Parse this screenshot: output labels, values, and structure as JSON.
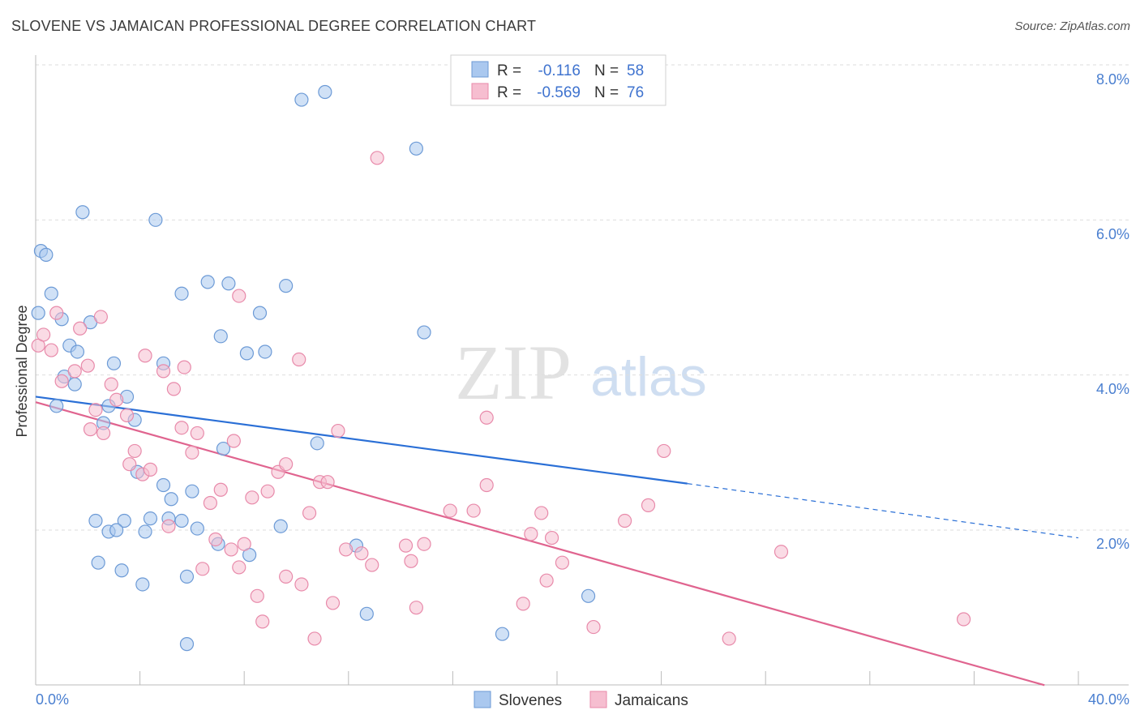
{
  "header": {
    "title": "SLOVENE VS JAMAICAN PROFESSIONAL DEGREE CORRELATION CHART",
    "source": "Source: ZipAtlas.com"
  },
  "watermark": {
    "zip": "ZIP",
    "atlas": "atlas"
  },
  "legend": {
    "rows": [
      {
        "r_label": "R =",
        "r_value": "-0.116",
        "n_label": "N =",
        "n_value": "58"
      },
      {
        "r_label": "R =",
        "r_value": "-0.569",
        "n_label": "N =",
        "n_value": "76"
      }
    ]
  },
  "bottom_legend": {
    "series1": "Slovenes",
    "series2": "Jamaicans"
  },
  "colors": {
    "slovenes_fill": "#aac8ef",
    "slovenes_stroke": "#6c9ad6",
    "slovenes_line": "#2a6fd6",
    "jamaicans_fill": "#f6bed0",
    "jamaicans_stroke": "#e88aaa",
    "jamaicans_line": "#e0648f",
    "grid": "#dedede",
    "tick_text": "#4a7fd0"
  },
  "chart_data": {
    "type": "scatter",
    "title": "SLOVENE VS JAMAICAN PROFESSIONAL DEGREE CORRELATION CHART",
    "xlabel": "",
    "ylabel": "Professional Degree",
    "xlim": [
      0,
      40
    ],
    "ylim": [
      0,
      8.3
    ],
    "x_tick_labels": [
      "0.0%",
      "40.0%"
    ],
    "y_ticks": [
      2,
      4,
      6,
      8
    ],
    "y_tick_labels": [
      "2.0%",
      "4.0%",
      "6.0%",
      "8.0%"
    ],
    "series": [
      {
        "name": "Slovenes",
        "R": -0.116,
        "N": 58,
        "trend": {
          "x0": 0,
          "y0": 3.72,
          "x1": 25,
          "y1": 2.6,
          "dash_to_x": 40,
          "dash_to_y": 1.9
        },
        "points": [
          [
            0.2,
            5.6
          ],
          [
            0.4,
            5.55
          ],
          [
            0.6,
            5.05
          ],
          [
            0.1,
            4.8
          ],
          [
            1.0,
            4.72
          ],
          [
            2.1,
            4.68
          ],
          [
            1.3,
            4.38
          ],
          [
            1.6,
            4.3
          ],
          [
            3.0,
            4.15
          ],
          [
            1.1,
            3.98
          ],
          [
            1.5,
            3.88
          ],
          [
            3.5,
            3.72
          ],
          [
            0.8,
            3.6
          ],
          [
            2.8,
            3.6
          ],
          [
            3.8,
            3.42
          ],
          [
            2.6,
            3.38
          ],
          [
            1.8,
            6.1
          ],
          [
            4.6,
            6.0
          ],
          [
            5.6,
            5.05
          ],
          [
            6.6,
            5.2
          ],
          [
            7.4,
            5.18
          ],
          [
            9.6,
            5.15
          ],
          [
            8.6,
            4.8
          ],
          [
            7.1,
            4.5
          ],
          [
            8.1,
            4.28
          ],
          [
            8.8,
            4.3
          ],
          [
            4.9,
            4.15
          ],
          [
            14.9,
            4.55
          ],
          [
            10.2,
            7.55
          ],
          [
            11.1,
            7.65
          ],
          [
            14.6,
            6.92
          ],
          [
            10.8,
            3.12
          ],
          [
            7.2,
            3.05
          ],
          [
            3.9,
            2.75
          ],
          [
            4.9,
            2.58
          ],
          [
            6.0,
            2.5
          ],
          [
            5.2,
            2.4
          ],
          [
            2.3,
            2.12
          ],
          [
            3.4,
            2.12
          ],
          [
            4.4,
            2.15
          ],
          [
            5.1,
            2.15
          ],
          [
            5.6,
            2.12
          ],
          [
            2.8,
            1.98
          ],
          [
            3.1,
            2.0
          ],
          [
            4.2,
            1.98
          ],
          [
            6.2,
            2.02
          ],
          [
            7.0,
            1.82
          ],
          [
            9.4,
            2.05
          ],
          [
            2.4,
            1.58
          ],
          [
            3.3,
            1.48
          ],
          [
            4.1,
            1.3
          ],
          [
            5.8,
            1.4
          ],
          [
            8.2,
            1.68
          ],
          [
            12.3,
            1.8
          ],
          [
            12.7,
            0.92
          ],
          [
            21.2,
            1.15
          ],
          [
            5.8,
            0.53
          ],
          [
            17.9,
            0.66
          ]
        ]
      },
      {
        "name": "Jamaicans",
        "R": -0.569,
        "N": 76,
        "trend": {
          "x0": 0,
          "y0": 3.65,
          "x1": 38.7,
          "y1": 0.0
        },
        "points": [
          [
            0.1,
            4.38
          ],
          [
            0.3,
            4.52
          ],
          [
            0.6,
            4.32
          ],
          [
            0.8,
            4.8
          ],
          [
            1.0,
            3.92
          ],
          [
            1.5,
            4.05
          ],
          [
            1.7,
            4.6
          ],
          [
            2.0,
            4.12
          ],
          [
            2.5,
            4.75
          ],
          [
            2.3,
            3.55
          ],
          [
            2.6,
            3.25
          ],
          [
            2.9,
            3.88
          ],
          [
            3.1,
            3.68
          ],
          [
            3.5,
            3.48
          ],
          [
            3.8,
            3.02
          ],
          [
            3.6,
            2.85
          ],
          [
            4.1,
            2.72
          ],
          [
            4.4,
            2.78
          ],
          [
            4.2,
            4.25
          ],
          [
            4.9,
            4.05
          ],
          [
            5.3,
            3.82
          ],
          [
            5.7,
            4.1
          ],
          [
            5.6,
            3.32
          ],
          [
            6.0,
            3.0
          ],
          [
            6.2,
            3.25
          ],
          [
            6.7,
            2.35
          ],
          [
            7.1,
            2.52
          ],
          [
            7.6,
            3.15
          ],
          [
            7.8,
            5.02
          ],
          [
            8.3,
            2.42
          ],
          [
            8.9,
            2.5
          ],
          [
            9.3,
            2.75
          ],
          [
            9.6,
            2.85
          ],
          [
            10.1,
            4.2
          ],
          [
            10.9,
            2.62
          ],
          [
            11.2,
            2.62
          ],
          [
            11.6,
            3.28
          ],
          [
            10.5,
            2.22
          ],
          [
            13.1,
            6.8
          ],
          [
            5.1,
            2.05
          ],
          [
            6.9,
            1.88
          ],
          [
            7.5,
            1.75
          ],
          [
            8.0,
            1.82
          ],
          [
            7.8,
            1.52
          ],
          [
            6.4,
            1.5
          ],
          [
            8.5,
            1.15
          ],
          [
            8.7,
            0.82
          ],
          [
            9.6,
            1.4
          ],
          [
            10.2,
            1.3
          ],
          [
            10.7,
            0.6
          ],
          [
            11.4,
            1.06
          ],
          [
            11.9,
            1.75
          ],
          [
            12.5,
            1.7
          ],
          [
            12.9,
            1.55
          ],
          [
            14.2,
            1.8
          ],
          [
            14.4,
            1.6
          ],
          [
            14.6,
            1.0
          ],
          [
            14.9,
            1.82
          ],
          [
            15.9,
            2.25
          ],
          [
            16.8,
            2.25
          ],
          [
            17.3,
            3.45
          ],
          [
            17.3,
            2.58
          ],
          [
            18.7,
            1.05
          ],
          [
            19.0,
            1.95
          ],
          [
            19.4,
            2.22
          ],
          [
            19.6,
            1.35
          ],
          [
            19.8,
            1.9
          ],
          [
            20.2,
            1.58
          ],
          [
            21.4,
            0.75
          ],
          [
            22.6,
            2.12
          ],
          [
            23.5,
            2.32
          ],
          [
            24.1,
            3.02
          ],
          [
            26.6,
            0.6
          ],
          [
            28.6,
            1.72
          ],
          [
            35.6,
            0.85
          ],
          [
            2.1,
            3.3
          ]
        ]
      }
    ]
  }
}
